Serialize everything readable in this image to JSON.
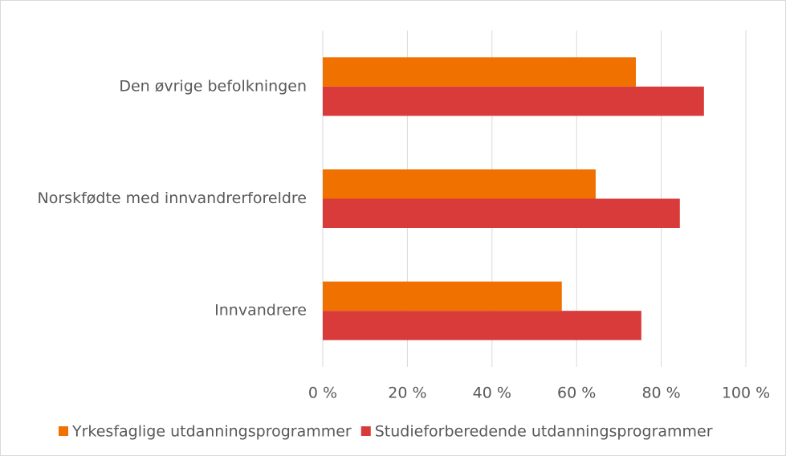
{
  "chart_data": {
    "type": "bar",
    "orientation": "horizontal",
    "categories": [
      "Den øvrige befolkningen",
      "Norskfødte med innvandrerforeldre",
      "Innvandrere"
    ],
    "series": [
      {
        "name": "Yrkesfaglige utdanningsprogrammer",
        "color": "#f07000",
        "values": [
          74.0,
          64.5,
          56.5
        ]
      },
      {
        "name": "Studieforberedende utdanningsprogrammer",
        "color": "#d93b3b",
        "values": [
          90.1,
          84.4,
          75.3
        ]
      }
    ],
    "xlim": [
      0,
      100
    ],
    "xticks": [
      {
        "value": 0,
        "label": "0 %"
      },
      {
        "value": 20,
        "label": "20 %"
      },
      {
        "value": 40,
        "label": "40 %"
      },
      {
        "value": 60,
        "label": "60 %"
      },
      {
        "value": 80,
        "label": "80 %"
      },
      {
        "value": 100,
        "label": "100 %"
      }
    ],
    "grid": true,
    "legend": "bottom"
  }
}
